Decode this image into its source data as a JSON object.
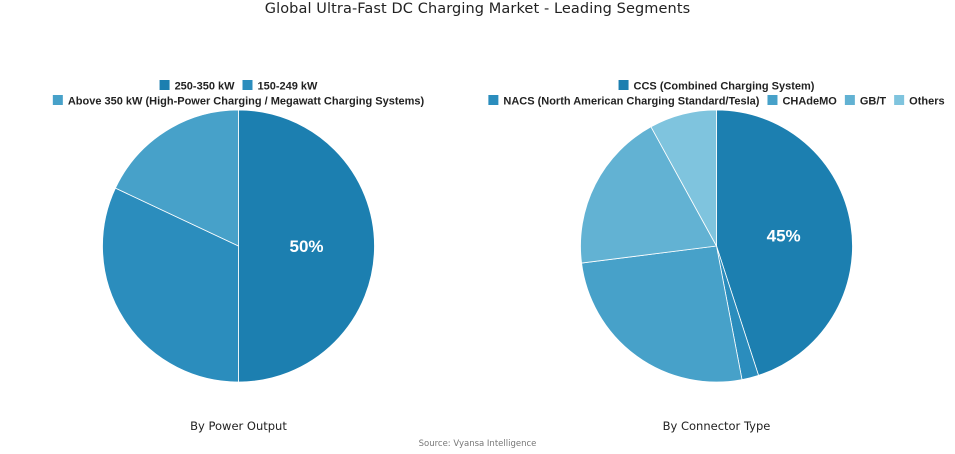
{
  "title": "Global Ultra-Fast DC Charging Market - Leading Segments",
  "source": "Source: Vyansa Intelligence",
  "chart_data": [
    {
      "type": "pie",
      "caption": "By Power Output",
      "slices": [
        {
          "label": "250-350 kW",
          "value": 50,
          "color": "#1c7fb0"
        },
        {
          "label": "150-249 kW",
          "value": 32,
          "color": "#2b8dbd"
        },
        {
          "label": "Above 350 kW (High-Power Charging / Megawatt Charging Systems)",
          "value": 18,
          "color": "#47a1c9"
        }
      ],
      "shown_label": "50%",
      "legend": [
        [
          "250-350 kW",
          "150-249 kW"
        ],
        [
          "Above 350 kW (High-Power Charging / Megawatt Charging Systems)"
        ]
      ]
    },
    {
      "type": "pie",
      "caption": "By Connector Type",
      "slices": [
        {
          "label": "CCS (Combined Charging System)",
          "value": 45,
          "color": "#1c7fb0"
        },
        {
          "label": "NACS (North American Charging Standard/Tesla)",
          "value": 2,
          "color": "#2b8dbd"
        },
        {
          "label": "CHAdeMO",
          "value": 26,
          "color": "#47a1c9"
        },
        {
          "label": "GB/T",
          "value": 19,
          "color": "#62b2d3"
        },
        {
          "label": "Others",
          "value": 8,
          "color": "#7fc4de"
        }
      ],
      "shown_label": "45%",
      "legend": [
        [
          "CCS (Combined Charging System)"
        ],
        [
          "NACS (North American Charging Standard/Tesla)",
          "CHAdeMO",
          "GB/T",
          "Others"
        ]
      ]
    }
  ]
}
